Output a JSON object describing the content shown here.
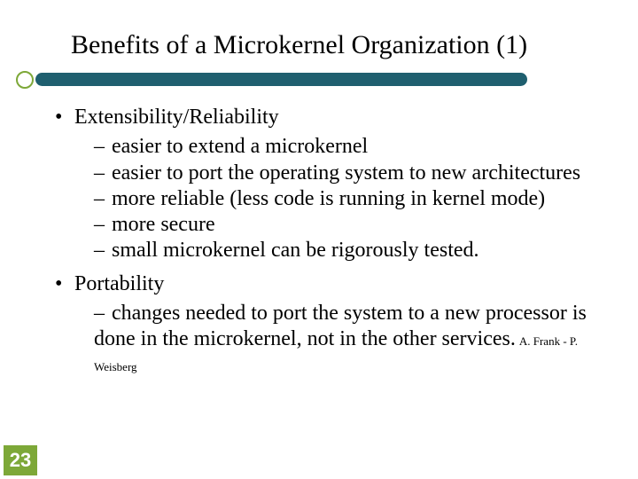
{
  "title": "Benefits of a Microkernel Organization (1)",
  "colors": {
    "rule": "#1f5f6f",
    "accent": "#7da838",
    "text": "#000000",
    "bg": "#ffffff"
  },
  "bullets": [
    {
      "label": "Extensibility/Reliability",
      "sub": [
        "easier to extend a microkernel",
        "easier to port the operating system to new architectures",
        "more reliable (less code is running in kernel mode)",
        "more secure",
        "small microkernel can be rigorously tested."
      ]
    },
    {
      "label": "Portability",
      "sub": [
        "changes needed to port the system to a new processor is done in the microkernel, not in the other services."
      ]
    }
  ],
  "footer_author": "A. Frank - P. Weisberg",
  "page_number": "23",
  "typography": {
    "title_fontsize_pt": 30,
    "body_fontsize_pt": 24,
    "footer_fontsize_pt": 13,
    "font_family": "Times New Roman"
  }
}
